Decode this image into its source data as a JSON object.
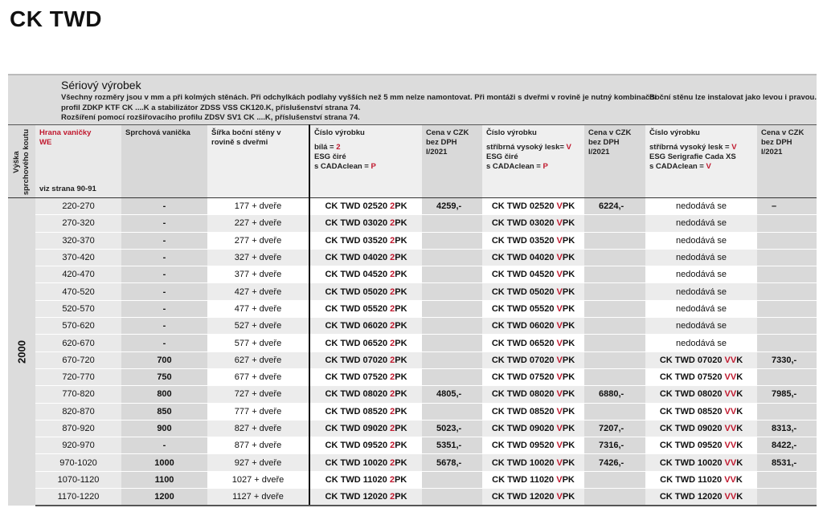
{
  "title": "CK TWD",
  "banner": {
    "heading": "Sériový výrobek",
    "line1": "Všechny rozměry jsou v mm a při kolmých stěnách. Při odchylkách podlahy vyšších než 5 mm nelze namontovat. Při montáži s dveřmi v rovině je nutný kombinační",
    "line2": "profil ZDKP KTF CK ....K  a stabilizátor ZDSS VSS CK120.K, příslušenství strana 74.",
    "line3": "Rozšíření pomocí rozšiřovacího profilu ZDSV SV1 CK ....K, příslušenství strana 74.",
    "right": "Boční stěnu lze instalovat jako levou i pravou."
  },
  "headers": {
    "height_l1": "Výška",
    "height_l2": "sprchového koutu",
    "edge": "Hrana vaničky",
    "edge_red": "WE",
    "edge_ref": "viz strana 90-91",
    "tray": "Sprchová vanička",
    "width": "Šířka boční stěny v rovině s dveřmi",
    "code1": "Číslo výrobku",
    "code1_a": "bílá = ",
    "code1_a_red": "2",
    "code1_b": "ESG čiré",
    "code1_c": "s CADAclean = ",
    "code1_c_red": "P",
    "price": "Cena v CZK bez DPH I/2021",
    "code2": "Číslo výrobku",
    "code2_a": "stříbrná vysoký lesk= ",
    "code2_a_red": "V",
    "code2_b": "ESG čiré",
    "code2_c": "s CADAclean = ",
    "code2_c_red": "P",
    "code3": "Číslo výrobku",
    "code3_a": "stříbrná vysoký lesk = ",
    "code3_a_red": "V",
    "code3_b": "ESG Serigrafie Cada XS",
    "code3_c": "s CADAclean = ",
    "code3_c_red": "V"
  },
  "height_value": "2000",
  "colors": {
    "accent": "#c0182e"
  },
  "rows": [
    {
      "range": "220-270",
      "tray": "-",
      "width": "177 + dveře",
      "c1": "CK TWD 02520 ",
      "s1": "2",
      "k1": "PK",
      "p1": "4259,-",
      "c2": "CK TWD 02520 ",
      "s2": "V",
      "k2": "PK",
      "p2": "6224,-",
      "c3": "nedodává se",
      "s3": "",
      "k3": "",
      "p3": "–"
    },
    {
      "range": "270-320",
      "tray": "-",
      "width": "227 + dveře",
      "c1": "CK TWD 03020 ",
      "s1": "2",
      "k1": "PK",
      "p1": "",
      "c2": "CK TWD 03020 ",
      "s2": "V",
      "k2": "PK",
      "p2": "",
      "c3": "nedodává se",
      "s3": "",
      "k3": "",
      "p3": ""
    },
    {
      "range": "320-370",
      "tray": "-",
      "width": "277 + dveře",
      "c1": "CK TWD 03520 ",
      "s1": "2",
      "k1": "PK",
      "p1": "",
      "c2": "CK TWD 03520 ",
      "s2": "V",
      "k2": "PK",
      "p2": "",
      "c3": "nedodává se",
      "s3": "",
      "k3": "",
      "p3": ""
    },
    {
      "range": "370-420",
      "tray": "-",
      "width": "327 + dveře",
      "c1": "CK TWD 04020 ",
      "s1": "2",
      "k1": "PK",
      "p1": "",
      "c2": "CK TWD 04020 ",
      "s2": "V",
      "k2": "PK",
      "p2": "",
      "c3": "nedodává se",
      "s3": "",
      "k3": "",
      "p3": ""
    },
    {
      "range": "420-470",
      "tray": "-",
      "width": "377 + dveře",
      "c1": "CK TWD 04520 ",
      "s1": "2",
      "k1": "PK",
      "p1": "",
      "c2": "CK TWD 04520  ",
      "s2": "V",
      "k2": "PK",
      "p2": "",
      "c3": "nedodává se",
      "s3": "",
      "k3": "",
      "p3": ""
    },
    {
      "range": "470-520",
      "tray": "-",
      "width": "427 + dveře",
      "c1": "CK TWD 05020 ",
      "s1": "2",
      "k1": "PK",
      "p1": "",
      "c2": "CK TWD 05020 ",
      "s2": "V",
      "k2": "PK",
      "p2": "",
      "c3": "nedodává se",
      "s3": "",
      "k3": "",
      "p3": ""
    },
    {
      "range": "520-570",
      "tray": "-",
      "width": "477 + dveře",
      "c1": "CK TWD 05520 ",
      "s1": "2",
      "k1": "PK",
      "p1": "",
      "c2": "CK TWD 05520 ",
      "s2": "V",
      "k2": "PK",
      "p2": "",
      "c3": "nedodává se",
      "s3": "",
      "k3": "",
      "p3": ""
    },
    {
      "range": "570-620",
      "tray": "-",
      "width": "527 + dveře",
      "c1": "CK TWD 06020 ",
      "s1": "2",
      "k1": "PK",
      "p1": "",
      "c2": "CK TWD 06020 ",
      "s2": "V",
      "k2": "PK",
      "p2": "",
      "c3": "nedodává se",
      "s3": "",
      "k3": "",
      "p3": ""
    },
    {
      "range": "620-670",
      "tray": "-",
      "width": "577 + dveře",
      "c1": "CK TWD 06520 ",
      "s1": "2",
      "k1": "PK",
      "p1": "",
      "c2": "CK TWD 06520 ",
      "s2": "V",
      "k2": "PK",
      "p2": "",
      "c3": "nedodává se",
      "s3": "",
      "k3": "",
      "p3": ""
    },
    {
      "range": "670-720",
      "tray": "700",
      "width": "627 + dveře",
      "c1": "CK TWD 07020 ",
      "s1": "2",
      "k1": "PK",
      "p1": "",
      "c2": "CK TWD 07020 ",
      "s2": "V",
      "k2": "PK",
      "p2": "",
      "c3": "CK TWD 07020 ",
      "s3": "VV",
      "k3": "K",
      "p3": "7330,-"
    },
    {
      "range": "720-770",
      "tray": "750",
      "width": "677 + dveře",
      "c1": "CK TWD 07520 ",
      "s1": "2",
      "k1": "PK",
      "p1": "",
      "c2": "CK TWD 07520 ",
      "s2": "V",
      "k2": "PK",
      "p2": "",
      "c3": "CK TWD 07520 ",
      "s3": "VV",
      "k3": "K",
      "p3": ""
    },
    {
      "range": "770-820",
      "tray": "800",
      "width": "727 + dveře",
      "c1": "CK TWD 08020 ",
      "s1": "2",
      "k1": "PK",
      "p1": "4805,-",
      "c2": "CK TWD 08020 ",
      "s2": "V",
      "k2": "PK",
      "p2": "6880,-",
      "c3": "CK TWD 08020 ",
      "s3": "VV",
      "k3": "K",
      "p3": "7985,-"
    },
    {
      "range": "820-870",
      "tray": "850",
      "width": "777 + dveře",
      "c1": "CK TWD 08520 ",
      "s1": "2",
      "k1": "PK",
      "p1": "",
      "c2": "CK TWD 08520 ",
      "s2": "V",
      "k2": "PK",
      "p2": "",
      "c3": "CK TWD 08520 ",
      "s3": "VV",
      "k3": "K",
      "p3": ""
    },
    {
      "range": "870-920",
      "tray": "900",
      "width": "827 + dveře",
      "c1": "CK TWD 09020 ",
      "s1": "2",
      "k1": "PK",
      "p1": "5023,-",
      "c2": "CK TWD 09020 ",
      "s2": "V",
      "k2": "PK",
      "p2": "7207,-",
      "c3": "CK TWD 09020 ",
      "s3": "VV",
      "k3": "K",
      "p3": "8313,-"
    },
    {
      "range": "920-970",
      "tray": "-",
      "width": "877 + dveře",
      "c1": "CK TWD 09520 ",
      "s1": "2",
      "k1": "PK",
      "p1": "5351,-",
      "c2": "CK TWD 09520 ",
      "s2": "V",
      "k2": "PK",
      "p2": "7316,-",
      "c3": "CK TWD 09520 ",
      "s3": "VV",
      "k3": "K",
      "p3": "8422,-"
    },
    {
      "range": "970-1020",
      "tray": "1000",
      "width": "927 + dveře",
      "c1": "CK TWD 10020 ",
      "s1": "2",
      "k1": "PK",
      "p1": "5678,-",
      "c2": "CK TWD 10020 ",
      "s2": "V",
      "k2": "PK",
      "p2": "7426,-",
      "c3": "CK TWD 10020 ",
      "s3": "VV",
      "k3": "K",
      "p3": "8531,-"
    },
    {
      "range": "1070-1120",
      "tray": "1100",
      "width": "1027 + dveře",
      "c1": "CK TWD 11020 ",
      "s1": "2",
      "k1": "PK",
      "p1": "",
      "c2": "CK TWD 11020 ",
      "s2": "V",
      "k2": "PK",
      "p2": "",
      "c3": "CK TWD 11020 ",
      "s3": "VV",
      "k3": "K",
      "p3": ""
    },
    {
      "range": "1170-1220",
      "tray": "1200",
      "width": "1127 + dveře",
      "c1": "CK TWD 12020 ",
      "s1": "2",
      "k1": "PK",
      "p1": "",
      "c2": "CK TWD 12020 ",
      "s2": "V",
      "k2": "PK",
      "p2": "",
      "c3": "CK TWD 12020 ",
      "s3": "VV",
      "k3": "K",
      "p3": ""
    }
  ]
}
